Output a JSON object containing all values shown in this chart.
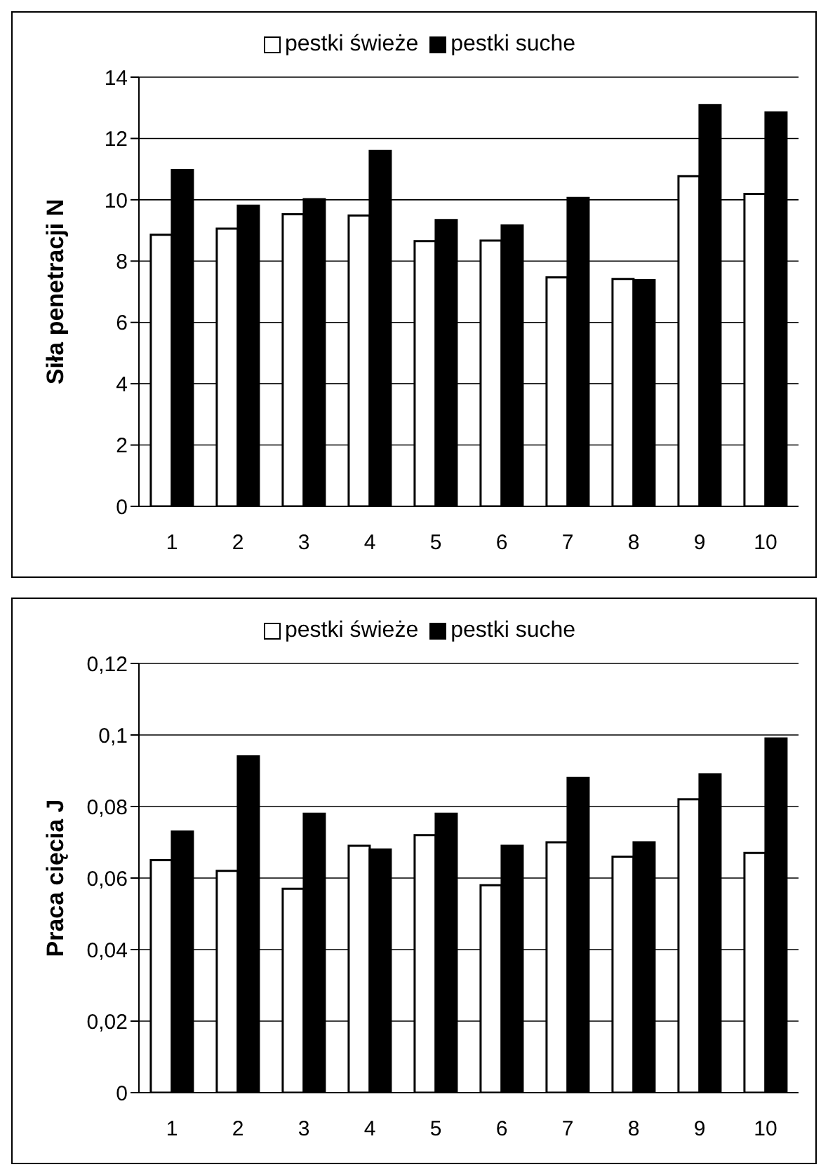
{
  "chart_data": [
    {
      "type": "bar",
      "ylabel": "Siła penetracji N",
      "categories": [
        "1",
        "2",
        "3",
        "4",
        "5",
        "6",
        "7",
        "8",
        "9",
        "10"
      ],
      "series": [
        {
          "name": "pestki świeże",
          "color": "#ffffff",
          "values": [
            8.86,
            9.06,
            9.53,
            9.49,
            8.65,
            8.67,
            7.47,
            7.42,
            10.77,
            10.19
          ]
        },
        {
          "name": "pestki suche",
          "color": "#000000",
          "values": [
            10.97,
            9.81,
            10.02,
            11.59,
            9.34,
            9.16,
            10.06,
            7.38,
            13.09,
            12.85
          ]
        }
      ],
      "ylim": [
        0,
        14
      ],
      "yticks": [
        0,
        2,
        4,
        6,
        8,
        10,
        12,
        14
      ],
      "grid": "y",
      "legend": "top"
    },
    {
      "type": "bar",
      "ylabel": "Praca cięcia J",
      "categories": [
        "1",
        "2",
        "3",
        "4",
        "5",
        "6",
        "7",
        "8",
        "9",
        "10"
      ],
      "series": [
        {
          "name": "pestki świeże",
          "color": "#ffffff",
          "values": [
            0.065,
            0.062,
            0.057,
            0.069,
            0.072,
            0.058,
            0.07,
            0.066,
            0.082,
            0.067
          ]
        },
        {
          "name": "pestki suche",
          "color": "#000000",
          "values": [
            0.073,
            0.094,
            0.078,
            0.068,
            0.078,
            0.069,
            0.088,
            0.07,
            0.089,
            0.099
          ]
        }
      ],
      "ylim": [
        0,
        0.12
      ],
      "yticks": [
        0,
        {
          "value": 0.02,
          "label": "0,02"
        },
        {
          "value": 0.04,
          "label": "0,04"
        },
        {
          "value": 0.06,
          "label": "0,06"
        },
        {
          "value": 0.08,
          "label": "0,08"
        },
        {
          "value": 0.1,
          "label": "0,1"
        },
        {
          "value": 0.12,
          "label": "0,12"
        }
      ],
      "grid": "y",
      "legend": "top"
    }
  ]
}
